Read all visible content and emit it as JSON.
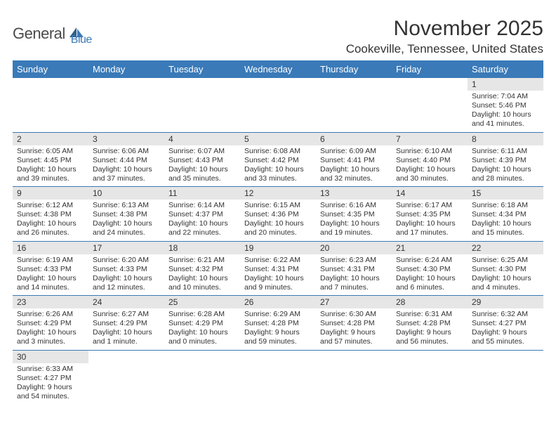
{
  "brand": {
    "part1": "General",
    "part2": "Blue"
  },
  "title": "November 2025",
  "location": "Cookeville, Tennessee, United States",
  "colors": {
    "header_bg": "#3a7ab8",
    "header_text": "#ffffff",
    "daynum_bg": "#e6e6e6",
    "row_border": "#3a7ab8",
    "logo_gray": "#4a4a4a",
    "logo_blue": "#3a7ab8"
  },
  "day_headers": [
    "Sunday",
    "Monday",
    "Tuesday",
    "Wednesday",
    "Thursday",
    "Friday",
    "Saturday"
  ],
  "weeks": [
    [
      null,
      null,
      null,
      null,
      null,
      null,
      {
        "num": "1",
        "sunrise": "Sunrise: 7:04 AM",
        "sunset": "Sunset: 5:46 PM",
        "daylight": "Daylight: 10 hours and 41 minutes."
      }
    ],
    [
      {
        "num": "2",
        "sunrise": "Sunrise: 6:05 AM",
        "sunset": "Sunset: 4:45 PM",
        "daylight": "Daylight: 10 hours and 39 minutes."
      },
      {
        "num": "3",
        "sunrise": "Sunrise: 6:06 AM",
        "sunset": "Sunset: 4:44 PM",
        "daylight": "Daylight: 10 hours and 37 minutes."
      },
      {
        "num": "4",
        "sunrise": "Sunrise: 6:07 AM",
        "sunset": "Sunset: 4:43 PM",
        "daylight": "Daylight: 10 hours and 35 minutes."
      },
      {
        "num": "5",
        "sunrise": "Sunrise: 6:08 AM",
        "sunset": "Sunset: 4:42 PM",
        "daylight": "Daylight: 10 hours and 33 minutes."
      },
      {
        "num": "6",
        "sunrise": "Sunrise: 6:09 AM",
        "sunset": "Sunset: 4:41 PM",
        "daylight": "Daylight: 10 hours and 32 minutes."
      },
      {
        "num": "7",
        "sunrise": "Sunrise: 6:10 AM",
        "sunset": "Sunset: 4:40 PM",
        "daylight": "Daylight: 10 hours and 30 minutes."
      },
      {
        "num": "8",
        "sunrise": "Sunrise: 6:11 AM",
        "sunset": "Sunset: 4:39 PM",
        "daylight": "Daylight: 10 hours and 28 minutes."
      }
    ],
    [
      {
        "num": "9",
        "sunrise": "Sunrise: 6:12 AM",
        "sunset": "Sunset: 4:38 PM",
        "daylight": "Daylight: 10 hours and 26 minutes."
      },
      {
        "num": "10",
        "sunrise": "Sunrise: 6:13 AM",
        "sunset": "Sunset: 4:38 PM",
        "daylight": "Daylight: 10 hours and 24 minutes."
      },
      {
        "num": "11",
        "sunrise": "Sunrise: 6:14 AM",
        "sunset": "Sunset: 4:37 PM",
        "daylight": "Daylight: 10 hours and 22 minutes."
      },
      {
        "num": "12",
        "sunrise": "Sunrise: 6:15 AM",
        "sunset": "Sunset: 4:36 PM",
        "daylight": "Daylight: 10 hours and 20 minutes."
      },
      {
        "num": "13",
        "sunrise": "Sunrise: 6:16 AM",
        "sunset": "Sunset: 4:35 PM",
        "daylight": "Daylight: 10 hours and 19 minutes."
      },
      {
        "num": "14",
        "sunrise": "Sunrise: 6:17 AM",
        "sunset": "Sunset: 4:35 PM",
        "daylight": "Daylight: 10 hours and 17 minutes."
      },
      {
        "num": "15",
        "sunrise": "Sunrise: 6:18 AM",
        "sunset": "Sunset: 4:34 PM",
        "daylight": "Daylight: 10 hours and 15 minutes."
      }
    ],
    [
      {
        "num": "16",
        "sunrise": "Sunrise: 6:19 AM",
        "sunset": "Sunset: 4:33 PM",
        "daylight": "Daylight: 10 hours and 14 minutes."
      },
      {
        "num": "17",
        "sunrise": "Sunrise: 6:20 AM",
        "sunset": "Sunset: 4:33 PM",
        "daylight": "Daylight: 10 hours and 12 minutes."
      },
      {
        "num": "18",
        "sunrise": "Sunrise: 6:21 AM",
        "sunset": "Sunset: 4:32 PM",
        "daylight": "Daylight: 10 hours and 10 minutes."
      },
      {
        "num": "19",
        "sunrise": "Sunrise: 6:22 AM",
        "sunset": "Sunset: 4:31 PM",
        "daylight": "Daylight: 10 hours and 9 minutes."
      },
      {
        "num": "20",
        "sunrise": "Sunrise: 6:23 AM",
        "sunset": "Sunset: 4:31 PM",
        "daylight": "Daylight: 10 hours and 7 minutes."
      },
      {
        "num": "21",
        "sunrise": "Sunrise: 6:24 AM",
        "sunset": "Sunset: 4:30 PM",
        "daylight": "Daylight: 10 hours and 6 minutes."
      },
      {
        "num": "22",
        "sunrise": "Sunrise: 6:25 AM",
        "sunset": "Sunset: 4:30 PM",
        "daylight": "Daylight: 10 hours and 4 minutes."
      }
    ],
    [
      {
        "num": "23",
        "sunrise": "Sunrise: 6:26 AM",
        "sunset": "Sunset: 4:29 PM",
        "daylight": "Daylight: 10 hours and 3 minutes."
      },
      {
        "num": "24",
        "sunrise": "Sunrise: 6:27 AM",
        "sunset": "Sunset: 4:29 PM",
        "daylight": "Daylight: 10 hours and 1 minute."
      },
      {
        "num": "25",
        "sunrise": "Sunrise: 6:28 AM",
        "sunset": "Sunset: 4:29 PM",
        "daylight": "Daylight: 10 hours and 0 minutes."
      },
      {
        "num": "26",
        "sunrise": "Sunrise: 6:29 AM",
        "sunset": "Sunset: 4:28 PM",
        "daylight": "Daylight: 9 hours and 59 minutes."
      },
      {
        "num": "27",
        "sunrise": "Sunrise: 6:30 AM",
        "sunset": "Sunset: 4:28 PM",
        "daylight": "Daylight: 9 hours and 57 minutes."
      },
      {
        "num": "28",
        "sunrise": "Sunrise: 6:31 AM",
        "sunset": "Sunset: 4:28 PM",
        "daylight": "Daylight: 9 hours and 56 minutes."
      },
      {
        "num": "29",
        "sunrise": "Sunrise: 6:32 AM",
        "sunset": "Sunset: 4:27 PM",
        "daylight": "Daylight: 9 hours and 55 minutes."
      }
    ],
    [
      {
        "num": "30",
        "sunrise": "Sunrise: 6:33 AM",
        "sunset": "Sunset: 4:27 PM",
        "daylight": "Daylight: 9 hours and 54 minutes."
      },
      null,
      null,
      null,
      null,
      null,
      null
    ]
  ]
}
